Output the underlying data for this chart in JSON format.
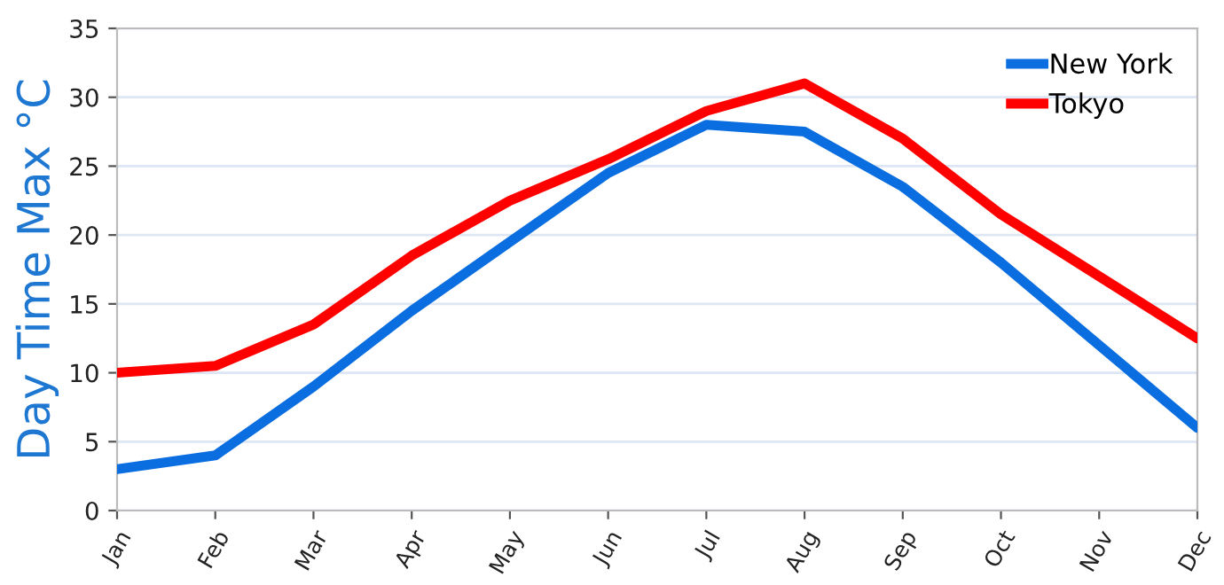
{
  "chart_data": {
    "type": "line",
    "ylabel": "Day Time Max °C",
    "categories": [
      "Jan",
      "Feb",
      "Mar",
      "Apr",
      "May",
      "Jun",
      "Jul",
      "Aug",
      "Sep",
      "Oct",
      "Nov",
      "Dec"
    ],
    "series": [
      {
        "name": "New York",
        "color": "#0a6ee0",
        "values": [
          3,
          4,
          9,
          14.5,
          19.5,
          24.5,
          28,
          27.5,
          23.5,
          18,
          12,
          6
        ]
      },
      {
        "name": "Tokyo",
        "color": "#ff0000",
        "values": [
          10,
          10.5,
          13.5,
          18.5,
          22.5,
          25.5,
          29,
          31,
          27,
          21.5,
          17,
          12.5
        ]
      }
    ],
    "ylim": [
      0,
      35
    ],
    "yticks": [
      0,
      5,
      10,
      15,
      20,
      25,
      30,
      35
    ],
    "grid": "y",
    "legend": "top right",
    "marker": "none",
    "line_style": "solid"
  }
}
